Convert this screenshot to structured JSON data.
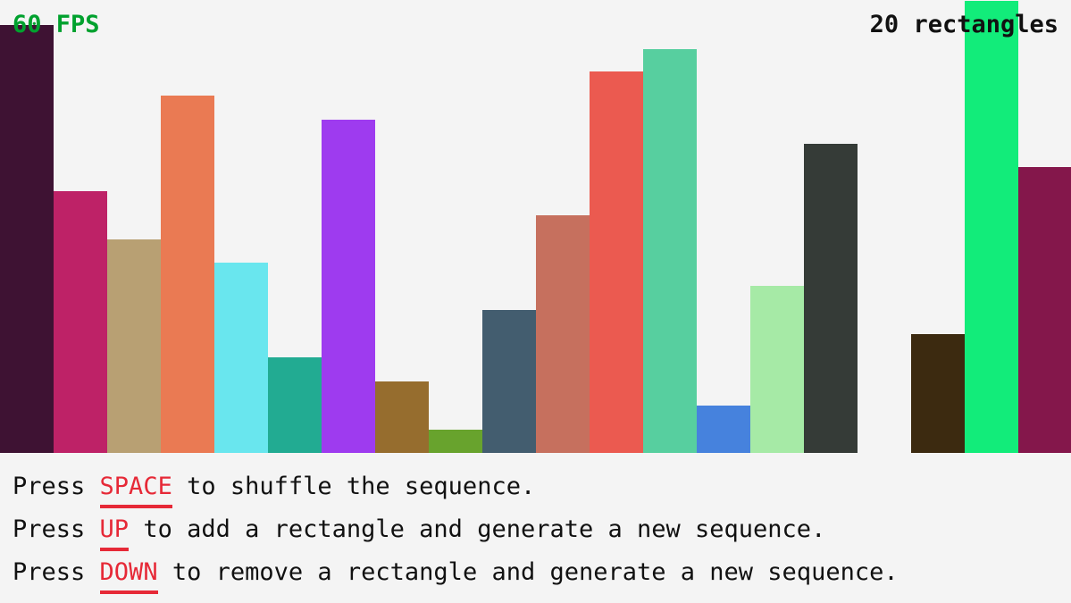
{
  "hud": {
    "fps": "60 FPS",
    "count": "20 rectangles",
    "fps_color": "#00a12e"
  },
  "rectangles": [
    {
      "height_fraction": 0.945,
      "color": "#3e1233"
    },
    {
      "height_fraction": 0.578,
      "color": "#be2267"
    },
    {
      "height_fraction": 0.471,
      "color": "#b8a073"
    },
    {
      "height_fraction": 0.789,
      "color": "#ea7a53"
    },
    {
      "height_fraction": 0.42,
      "color": "#69e6ee"
    },
    {
      "height_fraction": 0.211,
      "color": "#22ab92"
    },
    {
      "height_fraction": 0.736,
      "color": "#9e3bef"
    },
    {
      "height_fraction": 0.158,
      "color": "#966d2e"
    },
    {
      "height_fraction": 0.051,
      "color": "#68a32d"
    },
    {
      "height_fraction": 0.316,
      "color": "#435d6f"
    },
    {
      "height_fraction": 0.525,
      "color": "#c6705e"
    },
    {
      "height_fraction": 0.842,
      "color": "#eb5a50"
    },
    {
      "height_fraction": 0.892,
      "color": "#57cf9f"
    },
    {
      "height_fraction": 0.105,
      "color": "#4682dd"
    },
    {
      "height_fraction": 0.369,
      "color": "#a6eaa6"
    },
    {
      "height_fraction": 0.682,
      "color": "#353b37"
    },
    {
      "height_fraction": 0.0,
      "color": "#f4f4f4"
    },
    {
      "height_fraction": 0.262,
      "color": "#3c2a10"
    },
    {
      "height_fraction": 0.998,
      "color": "#12ec7a"
    },
    {
      "height_fraction": 0.631,
      "color": "#84174b"
    }
  ],
  "instructions": [
    {
      "pre": "Press ",
      "key": "SPACE",
      "post": " to shuffle the sequence."
    },
    {
      "pre": "Press ",
      "key": "UP",
      "post": " to add a rectangle and generate a new sequence."
    },
    {
      "pre": "Press ",
      "key": "DOWN",
      "post": " to remove a rectangle and generate a new sequence."
    }
  ],
  "key_color": "#e62937"
}
